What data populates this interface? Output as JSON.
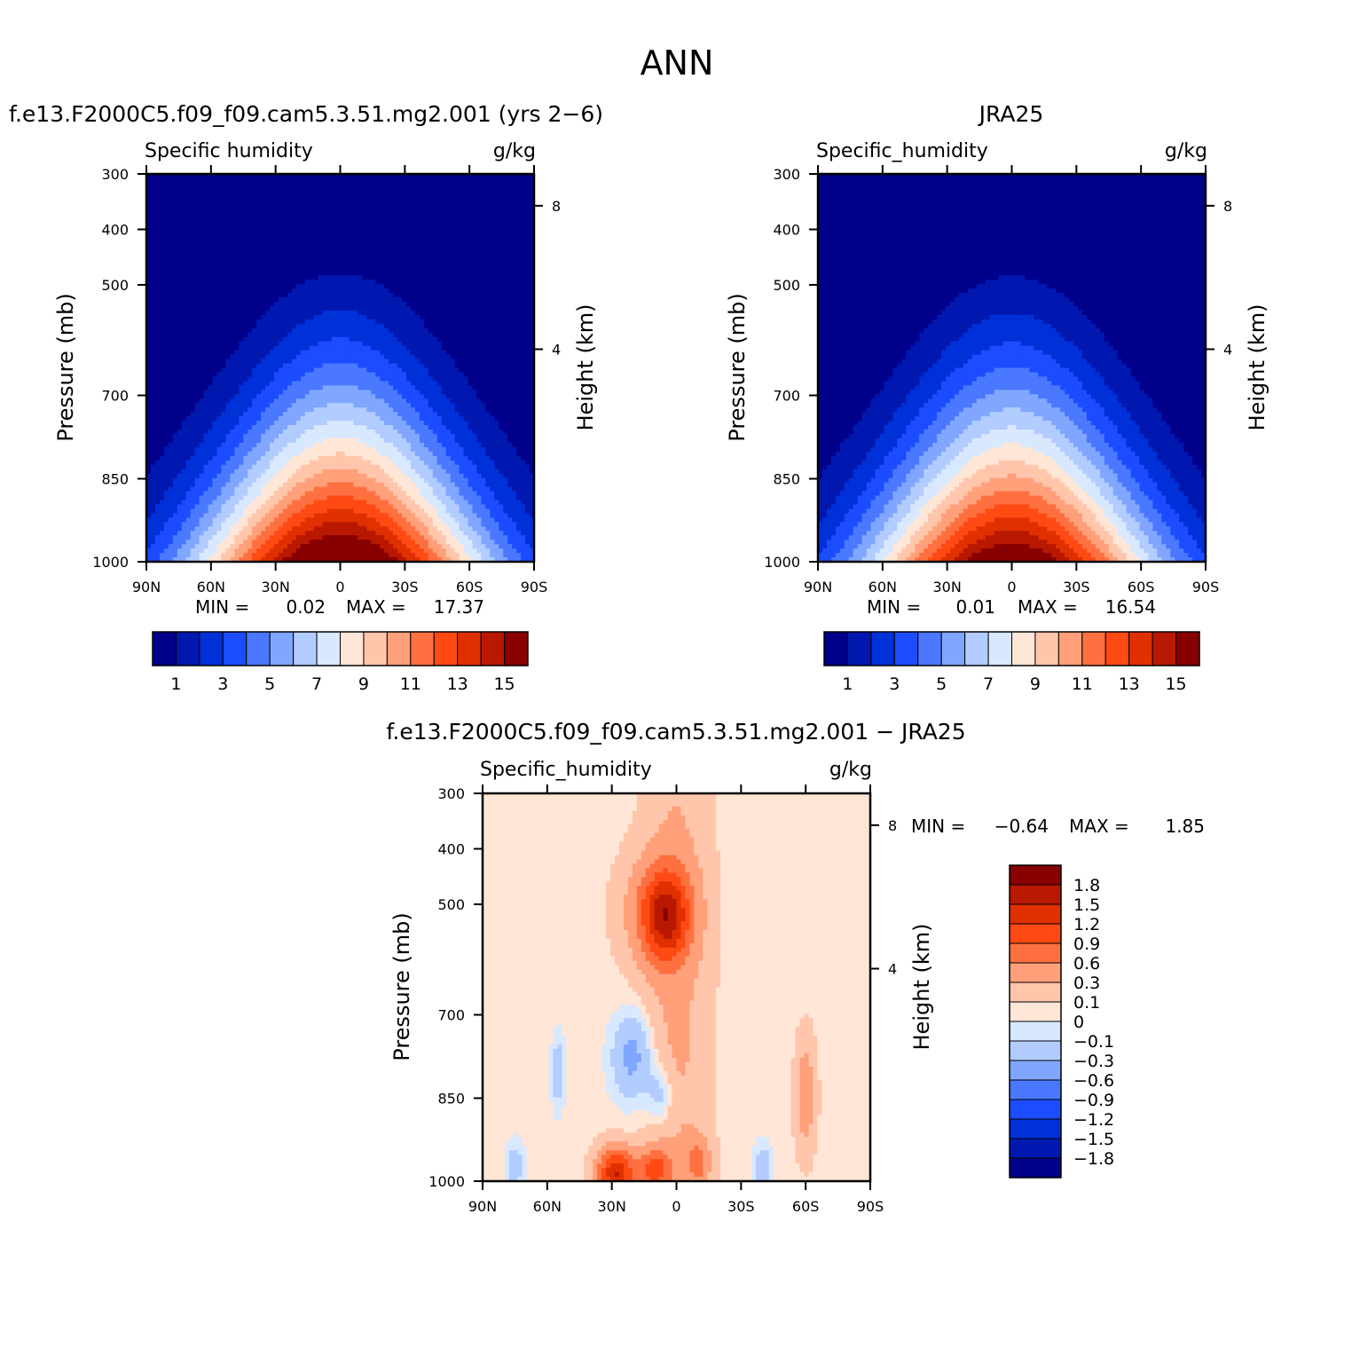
{
  "figure": {
    "title": "ANN"
  },
  "chart_data": [
    {
      "type": "heatmap",
      "panel_title": "f.e13.F2000C5.f09_f09.cam5.3.51.mg2.001 (yrs 2−6)",
      "field": "Specific humidity",
      "units": "g/kg",
      "xlabel": "",
      "ylabel": "Pressure (mb)",
      "y2label": "Height (km)",
      "x_ticks": [
        "90N",
        "60N",
        "30N",
        "0",
        "30S",
        "60S",
        "90S"
      ],
      "y_ticks": [
        "300",
        "400",
        "500",
        "700",
        "850",
        "1000"
      ],
      "y2_ticks": [
        "8",
        "4"
      ],
      "min_label": "MIN =",
      "min_value": "0.02",
      "max_label": "MAX =",
      "max_value": "17.37",
      "min": 0.02,
      "max": 17.37,
      "peak_lat": 0,
      "colorbar": {
        "orientation": "horizontal",
        "levels": [
          "1",
          "3",
          "5",
          "7",
          "9",
          "11",
          "13",
          "15"
        ],
        "colors": [
          "#00008b",
          "#0018b0",
          "#0030d8",
          "#1c4cff",
          "#4a78ff",
          "#80a6ff",
          "#b2ccff",
          "#d8e8ff",
          "#ffe6d6",
          "#ffc6ac",
          "#ffa07a",
          "#ff7040",
          "#ff4a14",
          "#e03000",
          "#b81800",
          "#880000"
        ]
      }
    },
    {
      "type": "heatmap",
      "panel_title": "JRA25",
      "field": "Specific_humidity",
      "units": "g/kg",
      "xlabel": "",
      "ylabel": "Pressure (mb)",
      "y2label": "Height (km)",
      "x_ticks": [
        "90N",
        "60N",
        "30N",
        "0",
        "30S",
        "60S",
        "90S"
      ],
      "y_ticks": [
        "300",
        "400",
        "500",
        "700",
        "850",
        "1000"
      ],
      "y2_ticks": [
        "8",
        "4"
      ],
      "min_label": "MIN =",
      "min_value": "0.01",
      "max_label": "MAX =",
      "max_value": "16.54",
      "min": 0.01,
      "max": 16.54,
      "peak_lat": 0,
      "colorbar": {
        "orientation": "horizontal",
        "levels": [
          "1",
          "3",
          "5",
          "7",
          "9",
          "11",
          "13",
          "15"
        ],
        "colors": [
          "#00008b",
          "#0018b0",
          "#0030d8",
          "#1c4cff",
          "#4a78ff",
          "#80a6ff",
          "#b2ccff",
          "#d8e8ff",
          "#ffe6d6",
          "#ffc6ac",
          "#ffa07a",
          "#ff7040",
          "#ff4a14",
          "#e03000",
          "#b81800",
          "#880000"
        ]
      }
    },
    {
      "type": "heatmap",
      "panel_title": "f.e13.F2000C5.f09_f09.cam5.3.51.mg2.001 − JRA25",
      "field": "Specific_humidity",
      "units": "g/kg",
      "xlabel": "",
      "ylabel": "Pressure (mb)",
      "y2label": "Height (km)",
      "x_ticks": [
        "90N",
        "60N",
        "30N",
        "0",
        "30S",
        "60S",
        "90S"
      ],
      "y_ticks": [
        "300",
        "400",
        "500",
        "700",
        "850",
        "1000"
      ],
      "y2_ticks": [
        "8",
        "4"
      ],
      "min_label": "MIN =",
      "min_value": "−0.64",
      "max_label": "MAX =",
      "max_value": "1.85",
      "min": -0.64,
      "max": 1.85,
      "colorbar": {
        "orientation": "vertical",
        "levels": [
          "1.8",
          "1.5",
          "1.2",
          "0.9",
          "0.6",
          "0.3",
          "0.1",
          "0",
          "−0.1",
          "−0.3",
          "−0.6",
          "−0.9",
          "−1.2",
          "−1.5",
          "−1.8"
        ],
        "colors": [
          "#880000",
          "#b81800",
          "#e03000",
          "#ff4a14",
          "#ff7040",
          "#ffa07a",
          "#ffc6ac",
          "#ffe6d6",
          "#d8e8ff",
          "#b2ccff",
          "#80a6ff",
          "#4a78ff",
          "#1c4cff",
          "#0030d8",
          "#0018b0",
          "#00008b"
        ]
      }
    }
  ]
}
